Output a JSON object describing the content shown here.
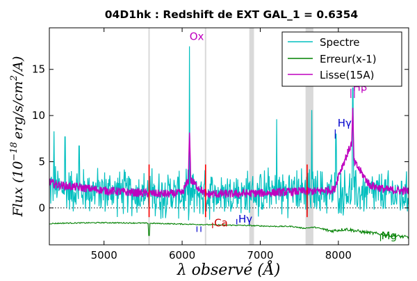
{
  "chart_data": {
    "type": "line",
    "title": "04D1hk : Redshift de EXT GAL_1 = 0.6354",
    "xlabel": "λ observé (Å)",
    "ylabel": "Flux (10^-18 erg/s/cm²/A)",
    "ylabel_parts": {
      "a": "Flux (10",
      "exp": "−18",
      "b": "erg/s/cm",
      "exp2": "2",
      "c": "/A)"
    },
    "xlim": [
      4300,
      8900
    ],
    "ylim": [
      -4,
      19.5
    ],
    "x_ticks": [
      5000,
      6000,
      7000,
      8000
    ],
    "x_tick_labels": [
      "5000",
      "6000",
      "7000",
      "8000"
    ],
    "y_ticks": [
      0,
      5,
      10,
      15
    ],
    "y_tick_labels": [
      "0",
      "5",
      "10",
      "15"
    ],
    "zero_line": 0,
    "legend_position": "top-right",
    "series": [
      {
        "name": "Spectre",
        "color": "#00bfbf",
        "noise": 2.0,
        "base_x": [
          4300,
          4600,
          5000,
          5500,
          6000,
          6500,
          7000,
          7500,
          7800,
          8200,
          8600,
          8900
        ],
        "base_y": [
          2.3,
          2.0,
          1.8,
          1.6,
          1.5,
          1.5,
          1.6,
          1.8,
          1.8,
          1.7,
          1.5,
          1.3
        ],
        "peaks": [
          [
            4360,
            8.3
          ],
          [
            4500,
            7.7
          ],
          [
            4680,
            6.7
          ],
          [
            6095,
            17.5
          ],
          [
            7210,
            9.6
          ],
          [
            7660,
            10.6
          ],
          [
            7970,
            8.0
          ],
          [
            8185,
            13.0
          ]
        ]
      },
      {
        "name": "Erreur(x-1)",
        "color": "#008000",
        "x": [
          4300,
          4500,
          5000,
          5500,
          6000,
          6500,
          6800,
          7000,
          7200,
          7400,
          7550,
          7700,
          7900,
          8100,
          8300,
          8500,
          8700,
          8900
        ],
        "y": [
          -1.7,
          -1.65,
          -1.6,
          -1.65,
          -1.75,
          -1.85,
          -1.9,
          -1.95,
          -2.0,
          -2.0,
          -2.2,
          -2.1,
          -2.5,
          -2.3,
          -2.6,
          -2.8,
          -3.0,
          -3.2
        ]
      },
      {
        "name": "Lisse(15A)",
        "color": "#bf00bf",
        "x": [
          4300,
          4400,
          4500,
          4700,
          5000,
          5300,
          5500,
          5800,
          6000,
          6080,
          6095,
          6110,
          6300,
          6600,
          7000,
          7300,
          7500,
          7700,
          7950,
          8000,
          8170,
          8185,
          8200,
          8400,
          8600,
          8900
        ],
        "y": [
          2.8,
          2.5,
          2.4,
          2.2,
          1.9,
          1.7,
          1.6,
          1.5,
          1.6,
          3.0,
          8.5,
          3.0,
          1.5,
          1.5,
          1.6,
          1.7,
          1.8,
          1.8,
          2.0,
          3.5,
          7.0,
          10.5,
          5.0,
          2.5,
          2.0,
          1.8
        ]
      }
    ],
    "shaded_bands": [
      [
        6860,
        6920
      ],
      [
        7580,
        7680
      ]
    ],
    "sky_lines": [
      5577,
      6300
    ],
    "red_lines": [
      5577,
      6300,
      7600
    ],
    "line_marks": [
      {
        "label": "Ox",
        "x": 6095,
        "y": 18.2,
        "color": "#bf00bf"
      },
      {
        "label": "Hγ",
        "x": 7990,
        "y": 8.8,
        "color": "#0000cc"
      },
      {
        "label": "Hβ",
        "x": 8185,
        "y": 12.7,
        "color": "#bf00bf"
      },
      {
        "label": "Ca",
        "x": 6410,
        "y": -2.0,
        "color": "#cc0000"
      },
      {
        "label": "Hγ",
        "x": 6720,
        "y": -1.6,
        "color": "#0000cc"
      },
      {
        "label": "Mg",
        "x": 8550,
        "y": -3.4,
        "color": "#008000"
      }
    ],
    "tick_marks": [
      {
        "x": 6190,
        "y1": -2.6,
        "y2": -2.0,
        "color": "#0000cc"
      },
      {
        "x": 6240,
        "y1": -2.6,
        "y2": -2.0,
        "color": "#0000cc"
      },
      {
        "x": 6390,
        "y1": -2.2,
        "y2": -1.6,
        "color": "#cc0000"
      },
      {
        "x": 6700,
        "y1": -1.8,
        "y2": -1.2,
        "color": "#0000cc"
      },
      {
        "x": 7960,
        "y1": 7.5,
        "y2": 8.5,
        "color": "#0000cc"
      },
      {
        "x": 8160,
        "y1": 11.9,
        "y2": 12.9,
        "color": "#bf00bf"
      },
      {
        "x": 8205,
        "y1": 11.9,
        "y2": 12.9,
        "color": "#bf00bf"
      },
      {
        "x": 8540,
        "y1": -3.6,
        "y2": -3.0,
        "color": "#008000"
      }
    ]
  }
}
